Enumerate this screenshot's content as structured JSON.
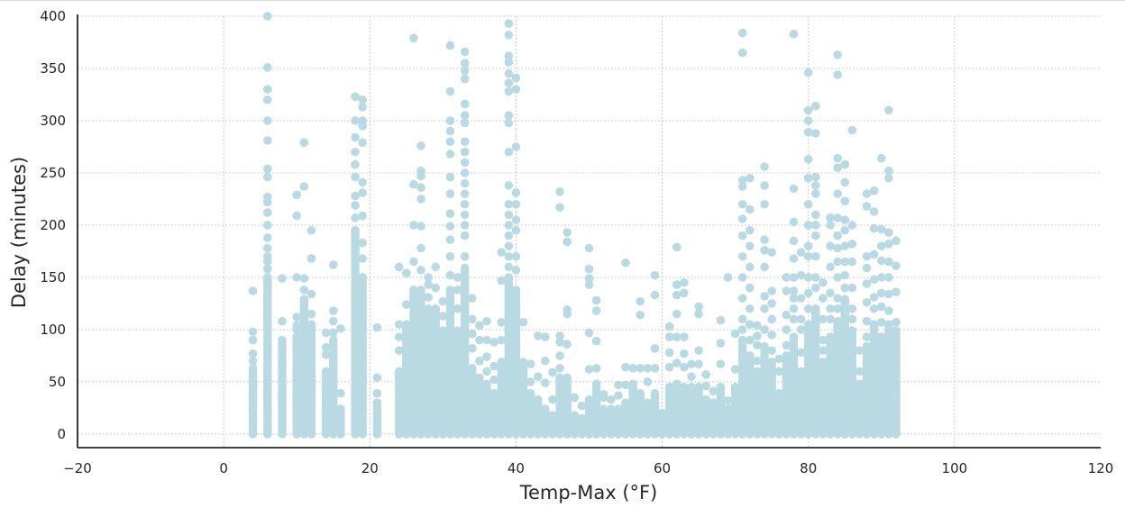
{
  "chart_data": {
    "type": "scatter",
    "title": "",
    "xlabel": "Temp-Max (°F)",
    "ylabel": "Delay (minutes)",
    "xlim": [
      -20,
      120
    ],
    "ylim": [
      -13,
      400
    ],
    "x_ticks": [
      -20,
      0,
      20,
      40,
      60,
      80,
      100,
      120
    ],
    "y_ticks": [
      0,
      50,
      100,
      150,
      200,
      250,
      300,
      350,
      400
    ],
    "grid": true,
    "legend": "none",
    "marker_color": "#b9d9e3",
    "series": [
      {
        "columns": [
          {
            "x": 4,
            "dense_max": 65,
            "outliers": [
              70,
              77,
              90,
              98,
              137
            ]
          },
          {
            "x": 6,
            "dense_max": 150,
            "outliers": [
              158,
              165,
              170,
              178,
              188,
              200,
              212,
              222,
              227,
              246,
              254,
              281,
              300,
              320,
              330,
              351,
              400
            ]
          },
          {
            "x": 8,
            "dense_max": 90,
            "outliers": [
              108,
              149
            ]
          },
          {
            "x": 10,
            "dense_max": 95,
            "outliers": [
              100,
              104,
              112,
              150,
              209,
              229
            ]
          },
          {
            "x": 11,
            "dense_max": 130,
            "outliers": [
              138,
              149,
              237,
              279
            ]
          },
          {
            "x": 12,
            "dense_max": 105,
            "outliers": [
              115,
              134,
              168,
              195
            ]
          },
          {
            "x": 14,
            "dense_max": 60,
            "outliers": [
              76,
              83,
              97
            ]
          },
          {
            "x": 15,
            "dense_max": 90,
            "outliers": [
              97,
              108,
              118,
              162
            ]
          },
          {
            "x": 16,
            "dense_max": 25,
            "outliers": [
              39,
              101
            ]
          },
          {
            "x": 18,
            "dense_max": 195,
            "outliers": [
              207,
              219,
              228,
              246,
              258,
              270,
              284,
              300,
              323
            ]
          },
          {
            "x": 19,
            "dense_max": 150,
            "outliers": [
              168,
              183,
              209,
              231,
              241,
              279,
              295,
              300,
              313,
              320
            ]
          },
          {
            "x": 21,
            "dense_max": 30,
            "outliers": [
              39,
              54,
              102
            ]
          },
          {
            "x": 24,
            "dense_max": 60,
            "outliers": [
              80,
              93,
              105,
              160
            ]
          },
          {
            "x": 25,
            "dense_max": 105,
            "outliers": [
              124,
              154
            ]
          },
          {
            "x": 26,
            "dense_max": 140,
            "outliers": [
              165,
              200,
              239,
              379
            ]
          },
          {
            "x": 27,
            "dense_max": 140,
            "outliers": [
              157,
              178,
              199,
              225,
              236,
              247,
              252,
              276
            ]
          },
          {
            "x": 28,
            "dense_max": 120,
            "outliers": [
              131,
              143,
              150
            ]
          },
          {
            "x": 29,
            "dense_max": 120,
            "outliers": [
              140,
              160
            ]
          },
          {
            "x": 30,
            "dense_max": 100,
            "outliers": [
              113,
              127
            ]
          },
          {
            "x": 31,
            "dense_max": 140,
            "outliers": [
              152,
              170,
              186,
              199,
              211,
              230,
              246,
              268,
              280,
              290,
              300,
              328,
              372
            ]
          },
          {
            "x": 32,
            "dense_max": 100,
            "outliers": [
              120,
              138,
              150
            ]
          },
          {
            "x": 33,
            "dense_max": 160,
            "outliers": [
              170,
              190,
              200,
              210,
              220,
              230,
              240,
              250,
              260,
              270,
              280,
              298,
              305,
              316,
              340,
              348,
              355,
              366
            ]
          },
          {
            "x": 34,
            "dense_max": 65,
            "outliers": [
              82,
              96,
              110,
              130
            ]
          },
          {
            "x": 35,
            "dense_max": 55,
            "outliers": [
              70,
              90,
              104
            ]
          },
          {
            "x": 36,
            "dense_max": 50,
            "outliers": [
              60,
              74,
              90,
              108
            ]
          },
          {
            "x": 37,
            "dense_max": 40,
            "outliers": [
              52,
              65,
              88
            ]
          },
          {
            "x": 38,
            "dense_max": 70,
            "outliers": [
              90,
              107,
              147,
              174
            ]
          },
          {
            "x": 39,
            "dense_max": 150,
            "outliers": [
              160,
              170,
              180,
              190,
              200,
              210,
              220,
              238,
              270,
              298,
              305,
              328,
              336,
              345,
              356,
              362,
              382,
              393
            ]
          },
          {
            "x": 40,
            "dense_max": 140,
            "outliers": [
              157,
              170,
              195,
              205,
              220,
              231,
              275,
              330,
              341
            ]
          },
          {
            "x": 41,
            "dense_max": 65,
            "outliers": [
              69,
              107
            ]
          },
          {
            "x": 42,
            "dense_max": 40,
            "outliers": [
              50,
              67
            ]
          },
          {
            "x": 43,
            "dense_max": 35,
            "outliers": [
              55,
              94
            ]
          },
          {
            "x": 44,
            "dense_max": 25,
            "outliers": [
              49,
              70,
              93
            ]
          },
          {
            "x": 45,
            "dense_max": 20,
            "outliers": [
              33,
              59
            ]
          },
          {
            "x": 46,
            "dense_max": 55,
            "outliers": [
              63,
              75,
              88,
              94,
              217,
              232
            ]
          },
          {
            "x": 47,
            "dense_max": 55,
            "outliers": [
              86,
              115,
              119,
              184,
              193
            ]
          },
          {
            "x": 48,
            "dense_max": 20,
            "outliers": [
              35
            ]
          },
          {
            "x": 49,
            "dense_max": 15,
            "outliers": [
              27
            ]
          },
          {
            "x": 50,
            "dense_max": 35,
            "outliers": [
              62,
              97,
              143,
              149,
              158,
              178
            ]
          },
          {
            "x": 51,
            "dense_max": 50,
            "outliers": [
              63,
              89,
              118,
              128
            ]
          },
          {
            "x": 52,
            "dense_max": 25,
            "outliers": [
              35,
              38
            ]
          },
          {
            "x": 53,
            "dense_max": 25,
            "outliers": [
              33
            ]
          },
          {
            "x": 54,
            "dense_max": 25,
            "outliers": [
              37,
              47
            ]
          },
          {
            "x": 55,
            "dense_max": 30,
            "outliers": [
              47,
              64,
              164
            ]
          },
          {
            "x": 56,
            "dense_max": 50,
            "outliers": [
              63
            ]
          },
          {
            "x": 57,
            "dense_max": 40,
            "outliers": [
              63,
              114,
              127
            ]
          },
          {
            "x": 58,
            "dense_max": 30,
            "outliers": [
              50,
              63
            ]
          },
          {
            "x": 59,
            "dense_max": 40,
            "outliers": [
              63,
              82,
              133,
              152
            ]
          },
          {
            "x": 60,
            "dense_max": 15,
            "outliers": [
              20
            ]
          },
          {
            "x": 61,
            "dense_max": 45,
            "outliers": [
              64,
              78,
              93,
              103
            ]
          },
          {
            "x": 62,
            "dense_max": 50,
            "outliers": [
              68,
              93,
              115,
              133,
              143,
              179
            ]
          },
          {
            "x": 63,
            "dense_max": 45,
            "outliers": [
              64,
              77,
              93,
              135,
              145
            ]
          },
          {
            "x": 64,
            "dense_max": 45,
            "outliers": [
              55,
              67
            ]
          },
          {
            "x": 65,
            "dense_max": 45,
            "outliers": [
              67,
              80,
              115,
              122
            ]
          },
          {
            "x": 66,
            "dense_max": 35,
            "outliers": [
              46,
              57
            ]
          },
          {
            "x": 67,
            "dense_max": 30,
            "outliers": [
              41
            ]
          },
          {
            "x": 68,
            "dense_max": 45,
            "outliers": [
              67,
              87,
              109
            ]
          },
          {
            "x": 69,
            "dense_max": 25,
            "outliers": [
              32,
              150
            ]
          },
          {
            "x": 70,
            "dense_max": 45,
            "outliers": [
              62,
              96
            ]
          },
          {
            "x": 71,
            "dense_max": 90,
            "outliers": [
              100,
              110,
              130,
              150,
              170,
              190,
              206,
              220,
              237,
              243,
              365,
              384
            ]
          },
          {
            "x": 72,
            "dense_max": 75,
            "outliers": [
              90,
              105,
              120,
              140,
              160,
              180,
              195,
              215,
              245
            ]
          },
          {
            "x": 73,
            "dense_max": 60,
            "outliers": [
              70,
              85,
              94,
              104
            ]
          },
          {
            "x": 74,
            "dense_max": 85,
            "outliers": [
              100,
              120,
              132,
              160,
              176,
              186,
              220,
              238,
              256
            ]
          },
          {
            "x": 75,
            "dense_max": 70,
            "outliers": [
              80,
              95,
              110,
              125,
              137,
              174
            ]
          },
          {
            "x": 76,
            "dense_max": 40,
            "outliers": [
              60,
              72
            ]
          },
          {
            "x": 77,
            "dense_max": 75,
            "outliers": [
              85,
              100,
              114,
              137,
              150
            ]
          },
          {
            "x": 78,
            "dense_max": 95,
            "outliers": [
              110,
              120,
              130,
              137,
              150,
              168,
              185,
              203,
              235,
              383
            ]
          },
          {
            "x": 79,
            "dense_max": 60,
            "outliers": [
              78,
              100,
              110,
              130,
              152,
              174
            ]
          },
          {
            "x": 80,
            "dense_max": 105,
            "outliers": [
              120,
              135,
              150,
              170,
              180,
              200,
              220,
              245,
              263,
              289,
              300,
              310,
              346
            ]
          },
          {
            "x": 81,
            "dense_max": 120,
            "outliers": [
              140,
              150,
              170,
              190,
              200,
              210,
              230,
              238,
              246,
              288,
              314
            ]
          },
          {
            "x": 82,
            "dense_max": 70,
            "outliers": [
              80,
              90,
              110,
              130,
              145
            ]
          },
          {
            "x": 83,
            "dense_max": 95,
            "outliers": [
              110,
              120,
              135,
              160,
              180,
              200,
              207
            ]
          },
          {
            "x": 84,
            "dense_max": 110,
            "outliers": [
              120,
              130,
              150,
              165,
              178,
              190,
              207,
              230,
              255,
              264,
              344,
              363
            ]
          },
          {
            "x": 85,
            "dense_max": 130,
            "outliers": [
              140,
              152,
              165,
              180,
              195,
              205,
              223,
              241,
              258
            ]
          },
          {
            "x": 86,
            "dense_max": 100,
            "outliers": [
              110,
              120,
              140,
              165,
              182,
              200,
              291
            ]
          },
          {
            "x": 87,
            "dense_max": 50,
            "outliers": [
              60,
              80
            ]
          },
          {
            "x": 88,
            "dense_max": 85,
            "outliers": [
              93,
              108,
              126,
              144,
              159,
              170,
              218,
              230
            ]
          },
          {
            "x": 89,
            "dense_max": 105,
            "outliers": [
              120,
              131,
              148,
              172,
              197,
              213,
              233
            ]
          },
          {
            "x": 90,
            "dense_max": 95,
            "outliers": [
              107,
              122,
              135,
              150,
              166,
              180,
              196,
              264
            ]
          },
          {
            "x": 91,
            "dense_max": 105,
            "outliers": [
              118,
              134,
              150,
              165,
              182,
              193,
              245,
              252,
              310
            ]
          },
          {
            "x": 92,
            "dense_max": 100,
            "outliers": [
              107,
              136,
              161,
              185
            ]
          }
        ]
      }
    ]
  }
}
